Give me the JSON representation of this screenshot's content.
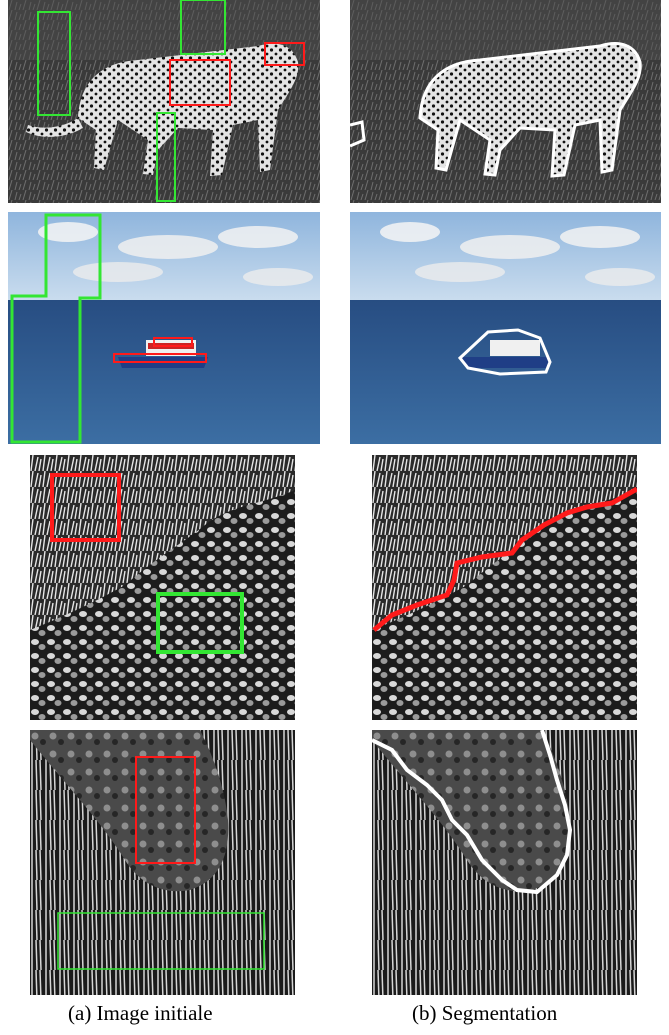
{
  "captions": {
    "left": "(a) Image initiale",
    "right": "(b) Segmentation"
  },
  "colors": {
    "roi_foreground": "#ff1a1a",
    "roi_background": "#33e633",
    "segmentation_contour": "#ffffff",
    "texture_boundary": "#ff1a1a",
    "sky": "#a9c8e4",
    "sea": "#2f5a8e"
  }
}
